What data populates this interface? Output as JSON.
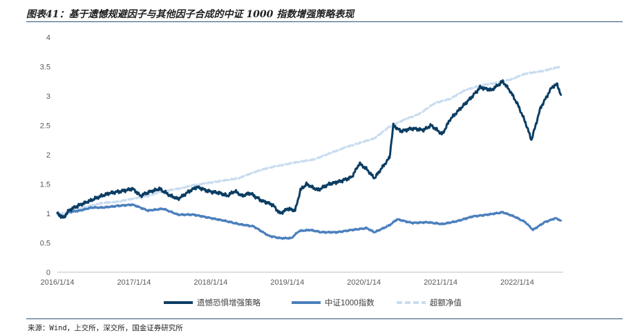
{
  "title": "图表41：基于遗憾规避因子与其他因子合成的中证 1000 指数增强策略表现",
  "source": "来源：Wind，上交所，深交所，国金证券研究所",
  "chart_data": {
    "type": "line",
    "x_tick_labels": [
      "2016/1/14",
      "2017/1/14",
      "2018/1/14",
      "2019/1/14",
      "2020/1/14",
      "2021/1/14",
      "2022/1/14"
    ],
    "y_tick_labels": [
      "0",
      "0.5",
      "1",
      "1.5",
      "2",
      "2.5",
      "3",
      "3.5",
      "4"
    ],
    "ylim": [
      0,
      4
    ],
    "xlim": [
      2016.0,
      2022.7
    ],
    "legend_position": "bottom",
    "series": [
      {
        "name": "遗憾恐惧增强策略",
        "color": "#0b3d63",
        "style": "solid",
        "points": [
          [
            2016.0,
            1.0
          ],
          [
            2016.08,
            0.92
          ],
          [
            2016.15,
            1.05
          ],
          [
            2016.25,
            1.12
          ],
          [
            2016.4,
            1.2
          ],
          [
            2016.55,
            1.28
          ],
          [
            2016.7,
            1.35
          ],
          [
            2016.85,
            1.38
          ],
          [
            2017.0,
            1.42
          ],
          [
            2017.1,
            1.3
          ],
          [
            2017.2,
            1.36
          ],
          [
            2017.35,
            1.42
          ],
          [
            2017.5,
            1.3
          ],
          [
            2017.6,
            1.25
          ],
          [
            2017.75,
            1.38
          ],
          [
            2017.85,
            1.45
          ],
          [
            2018.0,
            1.38
          ],
          [
            2018.15,
            1.35
          ],
          [
            2018.25,
            1.3
          ],
          [
            2018.35,
            1.38
          ],
          [
            2018.45,
            1.3
          ],
          [
            2018.55,
            1.35
          ],
          [
            2018.7,
            1.22
          ],
          [
            2018.85,
            1.15
          ],
          [
            2018.95,
            1.0
          ],
          [
            2019.05,
            1.08
          ],
          [
            2019.15,
            1.05
          ],
          [
            2019.22,
            1.4
          ],
          [
            2019.3,
            1.5
          ],
          [
            2019.45,
            1.4
          ],
          [
            2019.6,
            1.5
          ],
          [
            2019.75,
            1.55
          ],
          [
            2019.9,
            1.62
          ],
          [
            2020.0,
            1.85
          ],
          [
            2020.1,
            1.75
          ],
          [
            2020.2,
            1.6
          ],
          [
            2020.3,
            1.78
          ],
          [
            2020.4,
            1.95
          ],
          [
            2020.45,
            2.5
          ],
          [
            2020.55,
            2.4
          ],
          [
            2020.7,
            2.45
          ],
          [
            2020.85,
            2.42
          ],
          [
            2020.95,
            2.5
          ],
          [
            2021.1,
            2.35
          ],
          [
            2021.2,
            2.6
          ],
          [
            2021.35,
            2.8
          ],
          [
            2021.5,
            3.0
          ],
          [
            2021.6,
            3.15
          ],
          [
            2021.75,
            3.1
          ],
          [
            2021.9,
            3.25
          ],
          [
            2022.0,
            3.08
          ],
          [
            2022.1,
            2.85
          ],
          [
            2022.2,
            2.55
          ],
          [
            2022.28,
            2.25
          ],
          [
            2022.4,
            2.8
          ],
          [
            2022.55,
            3.15
          ],
          [
            2022.62,
            3.2
          ],
          [
            2022.67,
            3.02
          ]
        ]
      },
      {
        "name": "中证1000指数",
        "color": "#4a7fbd",
        "style": "solid",
        "points": [
          [
            2016.0,
            1.0
          ],
          [
            2016.08,
            0.95
          ],
          [
            2016.15,
            1.02
          ],
          [
            2016.3,
            1.05
          ],
          [
            2016.45,
            1.1
          ],
          [
            2016.6,
            1.1
          ],
          [
            2016.8,
            1.13
          ],
          [
            2017.0,
            1.15
          ],
          [
            2017.2,
            1.05
          ],
          [
            2017.4,
            1.08
          ],
          [
            2017.6,
            0.98
          ],
          [
            2017.8,
            0.98
          ],
          [
            2018.0,
            0.93
          ],
          [
            2018.2,
            0.88
          ],
          [
            2018.4,
            0.82
          ],
          [
            2018.6,
            0.78
          ],
          [
            2018.8,
            0.62
          ],
          [
            2018.95,
            0.58
          ],
          [
            2019.1,
            0.58
          ],
          [
            2019.2,
            0.7
          ],
          [
            2019.35,
            0.72
          ],
          [
            2019.5,
            0.68
          ],
          [
            2019.7,
            0.68
          ],
          [
            2019.9,
            0.72
          ],
          [
            2020.1,
            0.75
          ],
          [
            2020.2,
            0.68
          ],
          [
            2020.4,
            0.8
          ],
          [
            2020.5,
            0.9
          ],
          [
            2020.7,
            0.84
          ],
          [
            2020.9,
            0.85
          ],
          [
            2021.1,
            0.82
          ],
          [
            2021.3,
            0.87
          ],
          [
            2021.5,
            0.95
          ],
          [
            2021.7,
            0.98
          ],
          [
            2021.9,
            1.02
          ],
          [
            2022.05,
            0.95
          ],
          [
            2022.2,
            0.85
          ],
          [
            2022.3,
            0.72
          ],
          [
            2022.45,
            0.85
          ],
          [
            2022.6,
            0.92
          ],
          [
            2022.67,
            0.88
          ]
        ]
      },
      {
        "name": "超额净值",
        "color": "#c9dcf0",
        "style": "dashed",
        "points": [
          [
            2016.0,
            0.98
          ],
          [
            2016.2,
            1.05
          ],
          [
            2016.4,
            1.12
          ],
          [
            2016.6,
            1.18
          ],
          [
            2016.8,
            1.2
          ],
          [
            2017.0,
            1.25
          ],
          [
            2017.2,
            1.3
          ],
          [
            2017.4,
            1.38
          ],
          [
            2017.6,
            1.42
          ],
          [
            2017.8,
            1.48
          ],
          [
            2018.0,
            1.52
          ],
          [
            2018.2,
            1.56
          ],
          [
            2018.4,
            1.6
          ],
          [
            2018.6,
            1.7
          ],
          [
            2018.8,
            1.78
          ],
          [
            2019.0,
            1.83
          ],
          [
            2019.2,
            1.88
          ],
          [
            2019.4,
            1.92
          ],
          [
            2019.6,
            2.02
          ],
          [
            2019.8,
            2.12
          ],
          [
            2020.0,
            2.2
          ],
          [
            2020.2,
            2.28
          ],
          [
            2020.4,
            2.48
          ],
          [
            2020.6,
            2.6
          ],
          [
            2020.8,
            2.7
          ],
          [
            2021.0,
            2.88
          ],
          [
            2021.2,
            2.95
          ],
          [
            2021.4,
            3.1
          ],
          [
            2021.6,
            3.18
          ],
          [
            2021.8,
            3.22
          ],
          [
            2022.0,
            3.28
          ],
          [
            2022.2,
            3.38
          ],
          [
            2022.4,
            3.42
          ],
          [
            2022.6,
            3.48
          ],
          [
            2022.67,
            3.5
          ]
        ]
      }
    ]
  }
}
